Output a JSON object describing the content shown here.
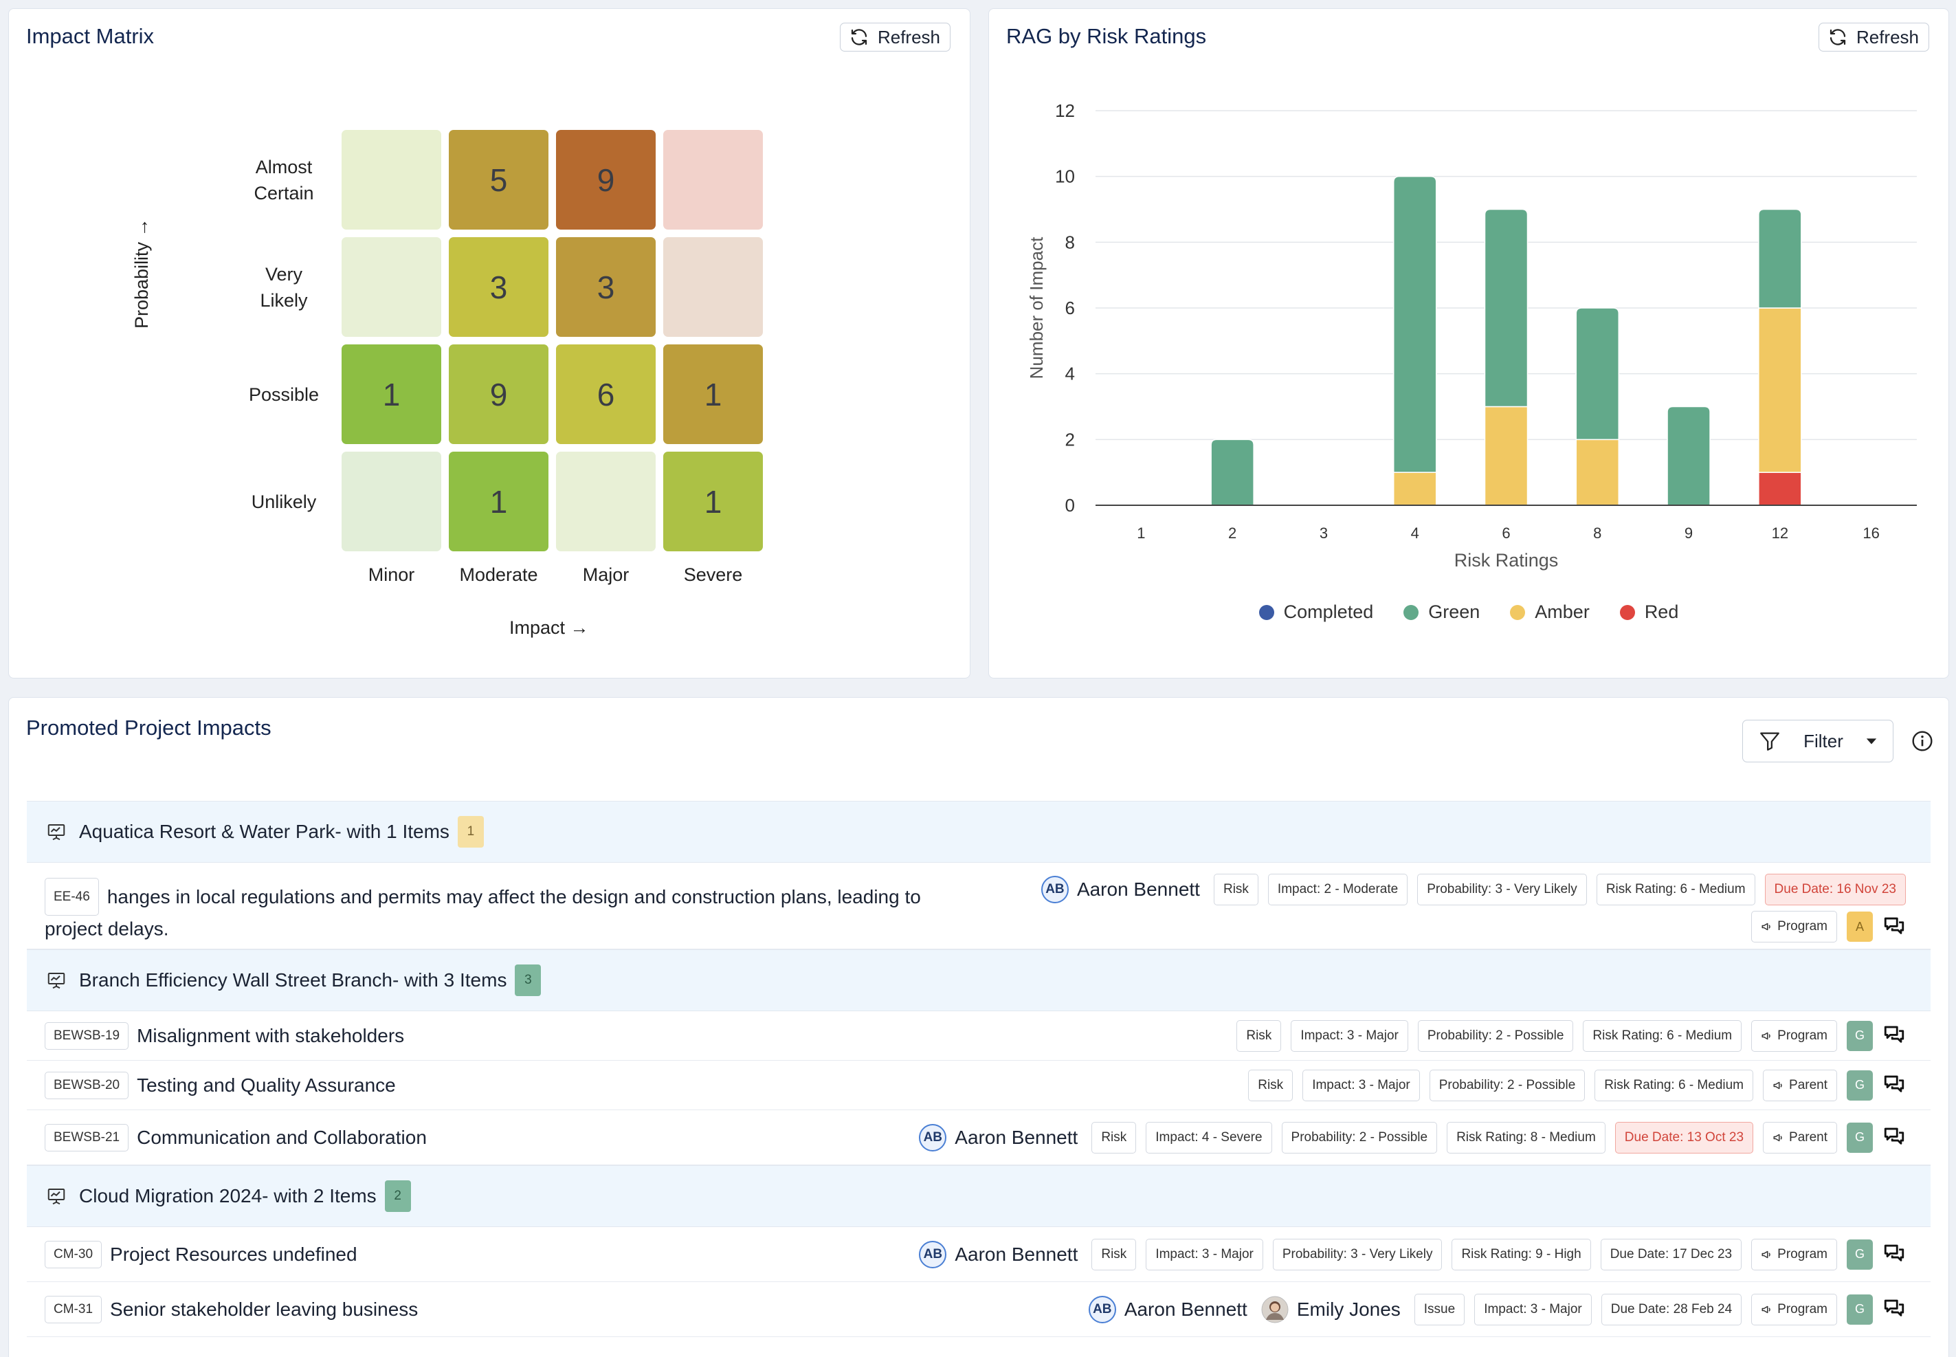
{
  "matrix": {
    "title": "Impact Matrix",
    "refresh_label": "Refresh",
    "y_axis_label": "Probability →",
    "x_axis_label": "Impact →",
    "rows": [
      "Almost Certain",
      "Very Likely",
      "Possible",
      "Unlikely"
    ],
    "columns": [
      "Minor",
      "Moderate",
      "Major",
      "Severe"
    ],
    "cells": [
      [
        {
          "value": "",
          "color": "#e8f0d0"
        },
        {
          "value": "5",
          "color": "#bc9d3c"
        },
        {
          "value": "9",
          "color": "#b56a2f"
        },
        {
          "value": "",
          "color": "#f2d2cb"
        }
      ],
      [
        {
          "value": "",
          "color": "#e8f0d6"
        },
        {
          "value": "3",
          "color": "#c4c142"
        },
        {
          "value": "3",
          "color": "#bc9a3d"
        },
        {
          "value": "",
          "color": "#ecdcd0"
        }
      ],
      [
        {
          "value": "1",
          "color": "#8dbe43"
        },
        {
          "value": "9",
          "color": "#acc145"
        },
        {
          "value": "6",
          "color": "#c4c244"
        },
        {
          "value": "1",
          "color": "#bc9e3c"
        }
      ],
      [
        {
          "value": "",
          "color": "#e2eed8"
        },
        {
          "value": "1",
          "color": "#90bf44"
        },
        {
          "value": "",
          "color": "#e8f0d6"
        },
        {
          "value": "1",
          "color": "#acc145"
        }
      ]
    ]
  },
  "rag": {
    "title": "RAG by Risk Ratings",
    "refresh_label": "Refresh",
    "legend": [
      {
        "label": "Completed",
        "color": "#3b5ba5"
      },
      {
        "label": "Green",
        "color": "#62a98a"
      },
      {
        "label": "Amber",
        "color": "#f1c862"
      },
      {
        "label": "Red",
        "color": "#e0463f"
      }
    ]
  },
  "chart_data": {
    "type": "bar",
    "stacked": true,
    "title": "RAG by Risk Ratings",
    "xlabel": "Risk Ratings",
    "ylabel": "Number of Impact",
    "categories": [
      "1",
      "2",
      "3",
      "4",
      "6",
      "8",
      "9",
      "12",
      "16"
    ],
    "ylim": [
      0,
      12
    ],
    "yticks": [
      0,
      2,
      4,
      6,
      8,
      10,
      12
    ],
    "grid": true,
    "legend_position": "bottom",
    "series": [
      {
        "name": "Completed",
        "color": "#3b5ba5",
        "values": [
          0,
          0,
          0,
          0,
          0,
          0,
          0,
          0,
          0
        ]
      },
      {
        "name": "Red",
        "color": "#e0463f",
        "values": [
          0,
          0,
          0,
          0,
          0,
          0,
          0,
          1,
          0
        ]
      },
      {
        "name": "Amber",
        "color": "#f1c862",
        "values": [
          0,
          0,
          0,
          1,
          3,
          2,
          0,
          5,
          0
        ]
      },
      {
        "name": "Green",
        "color": "#62a98a",
        "values": [
          0,
          2,
          0,
          9,
          6,
          4,
          3,
          3,
          0
        ]
      }
    ]
  },
  "impacts": {
    "title": "Promoted Project Impacts",
    "filter_label": "Filter",
    "groups": [
      {
        "title": "Aquatica Resort & Water Park- with 1 Items",
        "count": "1",
        "count_bg": "#f6e0a3",
        "count_color": "#7a6430",
        "items": [
          {
            "key": "EE-46",
            "title": "hanges in local regulations and permits may affect the design and construction plans, leading to project delays.",
            "people": [
              {
                "initials": "AB",
                "name": "Aaron Bennett"
              }
            ],
            "type": "Risk",
            "impact": "Impact: 2 - Moderate",
            "probability": "Probability: 3 - Very Likely",
            "rating": "Risk Rating: 6 - Medium",
            "due": "Due Date: 16 Nov 23",
            "due_late": true,
            "scope": "Program",
            "status": "A",
            "status_color": "#f4c965",
            "status_text_color": "#8a6a1e"
          }
        ]
      },
      {
        "title": "Branch Efficiency Wall Street Branch- with 3 Items",
        "count": "3",
        "count_bg": "#7fb89e",
        "count_color": "#2e5e48",
        "items": [
          {
            "key": "BEWSB-19",
            "title": "Misalignment with stakeholders",
            "people": [],
            "type": "Risk",
            "impact": "Impact: 3 - Major",
            "probability": "Probability: 2 - Possible",
            "rating": "Risk Rating: 6 - Medium",
            "due": "",
            "due_late": false,
            "scope": "Program",
            "status": "G",
            "status_color": "#7fb09a",
            "status_text_color": "#ffffff"
          },
          {
            "key": "BEWSB-20",
            "title": "Testing and Quality Assurance",
            "people": [],
            "type": "Risk",
            "impact": "Impact: 3 - Major",
            "probability": "Probability: 2 - Possible",
            "rating": "Risk Rating: 6 - Medium",
            "due": "",
            "due_late": false,
            "scope": "Parent",
            "status": "G",
            "status_color": "#7fb09a",
            "status_text_color": "#ffffff"
          },
          {
            "key": "BEWSB-21",
            "title": "Communication and Collaboration",
            "people": [
              {
                "initials": "AB",
                "name": "Aaron Bennett"
              }
            ],
            "type": "Risk",
            "impact": "Impact: 4 - Severe",
            "probability": "Probability: 2 - Possible",
            "rating": "Risk Rating: 8 - Medium",
            "due": "Due Date: 13 Oct 23",
            "due_late": true,
            "scope": "Parent",
            "status": "G",
            "status_color": "#7fb09a",
            "status_text_color": "#ffffff"
          }
        ]
      },
      {
        "title": "Cloud Migration 2024- with 2 Items",
        "count": "2",
        "count_bg": "#7fb89e",
        "count_color": "#2e5e48",
        "items": [
          {
            "key": "CM-30",
            "title": "Project Resources undefined",
            "people": [
              {
                "initials": "AB",
                "name": "Aaron Bennett"
              }
            ],
            "type": "Risk",
            "impact": "Impact: 3 - Major",
            "probability": "Probability: 3 - Very Likely",
            "rating": "Risk Rating: 9 - High",
            "due": "Due Date: 17 Dec 23",
            "due_late": false,
            "scope": "Program",
            "status": "G",
            "status_color": "#7fb09a",
            "status_text_color": "#ffffff"
          },
          {
            "key": "CM-31",
            "title": "Senior stakeholder leaving business",
            "people": [
              {
                "initials": "AB",
                "name": "Aaron Bennett"
              },
              {
                "initials": "",
                "name": "Emily Jones",
                "photo": true
              }
            ],
            "type": "Issue",
            "impact": "Impact: 3 - Major",
            "probability": "",
            "rating": "",
            "due": "Due Date: 28 Feb 24",
            "due_late": false,
            "scope": "Program",
            "status": "G",
            "status_color": "#7fb09a",
            "status_text_color": "#ffffff"
          }
        ]
      }
    ]
  }
}
